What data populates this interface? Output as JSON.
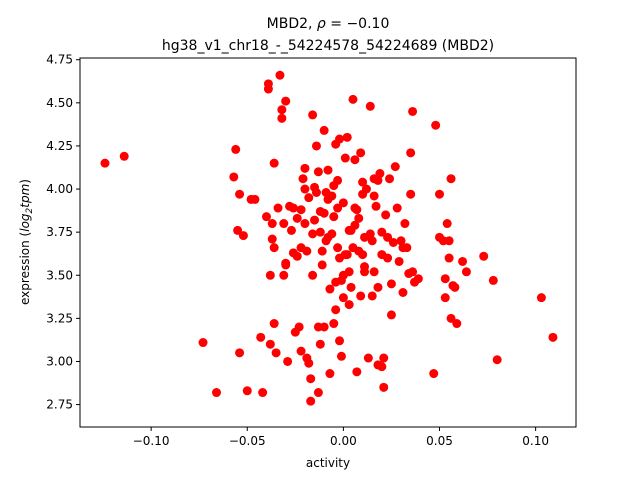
{
  "chart_data": {
    "type": "scatter",
    "title": "MBD2, ρ = −0.10",
    "title_line1_prefix": "MBD2, ",
    "title_rho_symbol": "ρ",
    "title_rho_value": " = −0.10",
    "subtitle": "hg38_v1_chr18_-_54224578_54224689 (MBD2)",
    "xlabel": "activity",
    "ylabel_prefix": "expression (",
    "ylabel_math": "log",
    "ylabel_sub": "2",
    "ylabel_math2": "tpm",
    "ylabel_suffix": ")",
    "xlim": [
      -0.137,
      0.121
    ],
    "ylim": [
      2.62,
      4.76
    ],
    "x_ticks": [
      -0.1,
      -0.05,
      0.0,
      0.05,
      0.1
    ],
    "x_tick_labels": [
      "−0.10",
      "−0.05",
      "0.00",
      "0.05",
      "0.10"
    ],
    "y_ticks": [
      2.75,
      3.0,
      3.25,
      3.5,
      3.75,
      4.0,
      4.25,
      4.5,
      4.75
    ],
    "y_tick_labels": [
      "2.75",
      "3.00",
      "3.25",
      "3.50",
      "3.75",
      "4.00",
      "4.25",
      "4.50",
      "4.75"
    ],
    "grid": false,
    "marker_color": "#ff0000",
    "points": [
      [
        -0.124,
        4.15
      ],
      [
        -0.114,
        4.19
      ],
      [
        -0.073,
        3.11
      ],
      [
        -0.066,
        2.82
      ],
      [
        -0.057,
        4.07
      ],
      [
        -0.056,
        4.23
      ],
      [
        -0.055,
        3.76
      ],
      [
        -0.054,
        3.05
      ],
      [
        -0.054,
        3.97
      ],
      [
        -0.052,
        3.73
      ],
      [
        -0.05,
        2.83
      ],
      [
        -0.048,
        3.94
      ],
      [
        -0.046,
        3.94
      ],
      [
        -0.043,
        3.14
      ],
      [
        -0.042,
        2.82
      ],
      [
        -0.04,
        3.84
      ],
      [
        -0.039,
        4.58
      ],
      [
        -0.039,
        4.61
      ],
      [
        -0.038,
        3.5
      ],
      [
        -0.038,
        3.1
      ],
      [
        -0.037,
        3.8
      ],
      [
        -0.037,
        3.71
      ],
      [
        -0.036,
        3.22
      ],
      [
        -0.036,
        3.66
      ],
      [
        -0.036,
        4.15
      ],
      [
        -0.035,
        3.05
      ],
      [
        -0.034,
        3.89
      ],
      [
        -0.033,
        4.66
      ],
      [
        -0.032,
        4.46
      ],
      [
        -0.032,
        4.41
      ],
      [
        -0.031,
        3.8
      ],
      [
        -0.031,
        3.5
      ],
      [
        -0.03,
        3.57
      ],
      [
        -0.03,
        4.51
      ],
      [
        -0.03,
        3.56
      ],
      [
        -0.029,
        3.0
      ],
      [
        -0.028,
        3.9
      ],
      [
        -0.027,
        3.76
      ],
      [
        -0.026,
        3.89
      ],
      [
        -0.025,
        3.17
      ],
      [
        -0.024,
        3.83
      ],
      [
        -0.024,
        3.61
      ],
      [
        -0.023,
        3.2
      ],
      [
        -0.022,
        3.66
      ],
      [
        -0.022,
        3.88
      ],
      [
        -0.022,
        3.06
      ],
      [
        -0.021,
        4.06
      ],
      [
        -0.02,
        4.0
      ],
      [
        -0.02,
        3.8
      ],
      [
        -0.02,
        4.12
      ],
      [
        -0.019,
        3.02
      ],
      [
        -0.019,
        3.64
      ],
      [
        -0.018,
        2.99
      ],
      [
        -0.018,
        3.95
      ],
      [
        -0.017,
        2.9
      ],
      [
        -0.017,
        2.77
      ],
      [
        -0.016,
        3.5
      ],
      [
        -0.016,
        4.43
      ],
      [
        -0.016,
        3.74
      ],
      [
        -0.015,
        4.01
      ],
      [
        -0.015,
        3.82
      ],
      [
        -0.014,
        4.25
      ],
      [
        -0.014,
        3.98
      ],
      [
        -0.013,
        4.1
      ],
      [
        -0.013,
        3.2
      ],
      [
        -0.013,
        2.82
      ],
      [
        -0.012,
        3.1
      ],
      [
        -0.012,
        3.87
      ],
      [
        -0.012,
        3.75
      ],
      [
        -0.011,
        3.56
      ],
      [
        -0.011,
        3.64
      ],
      [
        -0.01,
        3.2
      ],
      [
        -0.01,
        3.86
      ],
      [
        -0.01,
        4.34
      ],
      [
        -0.009,
        3.98
      ],
      [
        -0.009,
        3.7
      ],
      [
        -0.008,
        4.11
      ],
      [
        -0.008,
        3.94
      ],
      [
        -0.008,
        3.72
      ],
      [
        -0.007,
        3.42
      ],
      [
        -0.007,
        2.93
      ],
      [
        -0.006,
        3.74
      ],
      [
        -0.006,
        3.96
      ],
      [
        -0.005,
        3.84
      ],
      [
        -0.005,
        4.02
      ],
      [
        -0.005,
        3.22
      ],
      [
        -0.004,
        4.26
      ],
      [
        -0.004,
        3.3
      ],
      [
        -0.003,
        3.66
      ],
      [
        -0.003,
        3.89
      ],
      [
        -0.003,
        4.05
      ],
      [
        -0.002,
        3.6
      ],
      [
        -0.002,
        4.29
      ],
      [
        -0.002,
        3.12
      ],
      [
        -0.001,
        3.47
      ],
      [
        -0.001,
        3.03
      ],
      [
        0.0,
        3.37
      ],
      [
        0.0,
        3.5
      ],
      [
        0.0,
        3.92
      ],
      [
        0.001,
        3.62
      ],
      [
        0.001,
        4.18
      ],
      [
        0.002,
        4.3
      ],
      [
        0.002,
        3.62
      ],
      [
        0.003,
        3.76
      ],
      [
        0.003,
        3.52
      ],
      [
        0.003,
        3.33
      ],
      [
        0.004,
        3.76
      ],
      [
        0.004,
        3.43
      ],
      [
        0.005,
        3.66
      ],
      [
        0.005,
        4.52
      ],
      [
        0.006,
        3.89
      ],
      [
        0.006,
        4.17
      ],
      [
        0.007,
        2.94
      ],
      [
        0.007,
        3.88
      ],
      [
        0.008,
        3.83
      ],
      [
        0.008,
        3.64
      ],
      [
        0.009,
        4.21
      ],
      [
        0.009,
        3.38
      ],
      [
        0.01,
        3.62
      ],
      [
        0.01,
        3.97
      ],
      [
        0.01,
        4.04
      ],
      [
        0.011,
        3.72
      ],
      [
        0.011,
        3.55
      ],
      [
        0.012,
        4.0
      ],
      [
        0.013,
        3.02
      ],
      [
        0.014,
        3.74
      ],
      [
        0.014,
        4.48
      ],
      [
        0.015,
        3.38
      ],
      [
        0.015,
        3.7
      ],
      [
        0.016,
        4.06
      ],
      [
        0.016,
        3.52
      ],
      [
        0.016,
        3.96
      ],
      [
        0.017,
        3.9
      ],
      [
        0.018,
        4.05
      ],
      [
        0.018,
        2.98
      ],
      [
        0.019,
        4.09
      ],
      [
        0.02,
        3.75
      ],
      [
        0.02,
        3.62
      ],
      [
        0.02,
        2.97
      ],
      [
        0.021,
        3.02
      ],
      [
        0.021,
        2.85
      ],
      [
        0.022,
        3.85
      ],
      [
        0.023,
        3.72
      ],
      [
        0.023,
        3.6
      ],
      [
        0.024,
        4.06
      ],
      [
        0.025,
        3.27
      ],
      [
        0.025,
        3.45
      ],
      [
        0.027,
        4.13
      ],
      [
        0.028,
        3.89
      ],
      [
        0.029,
        3.58
      ],
      [
        0.03,
        3.7
      ],
      [
        0.031,
        3.66
      ],
      [
        0.031,
        3.4
      ],
      [
        0.032,
        3.8
      ],
      [
        0.033,
        3.66
      ],
      [
        0.034,
        3.51
      ],
      [
        0.035,
        4.21
      ],
      [
        0.035,
        3.97
      ],
      [
        0.036,
        4.45
      ],
      [
        0.036,
        3.52
      ],
      [
        0.037,
        3.46
      ],
      [
        0.039,
        3.48
      ],
      [
        0.047,
        2.93
      ],
      [
        0.048,
        4.37
      ],
      [
        0.05,
        3.97
      ],
      [
        0.05,
        3.72
      ],
      [
        0.052,
        3.7
      ],
      [
        0.053,
        3.48
      ],
      [
        0.053,
        3.37
      ],
      [
        0.054,
        3.8
      ],
      [
        0.055,
        3.7
      ],
      [
        0.055,
        3.6
      ],
      [
        0.056,
        3.25
      ],
      [
        0.056,
        4.06
      ],
      [
        0.057,
        3.44
      ],
      [
        0.058,
        3.43
      ],
      [
        0.059,
        3.22
      ],
      [
        0.062,
        3.58
      ],
      [
        0.064,
        3.52
      ],
      [
        0.073,
        3.61
      ],
      [
        0.078,
        3.47
      ],
      [
        0.08,
        3.01
      ],
      [
        0.103,
        3.37
      ],
      [
        0.109,
        3.14
      ],
      [
        0.011,
        3.52
      ],
      [
        -0.004,
        3.46
      ],
      [
        0.006,
        3.79
      ],
      [
        0.026,
        3.69
      ],
      [
        -0.026,
        3.63
      ],
      [
        0.018,
        3.43
      ]
    ]
  }
}
